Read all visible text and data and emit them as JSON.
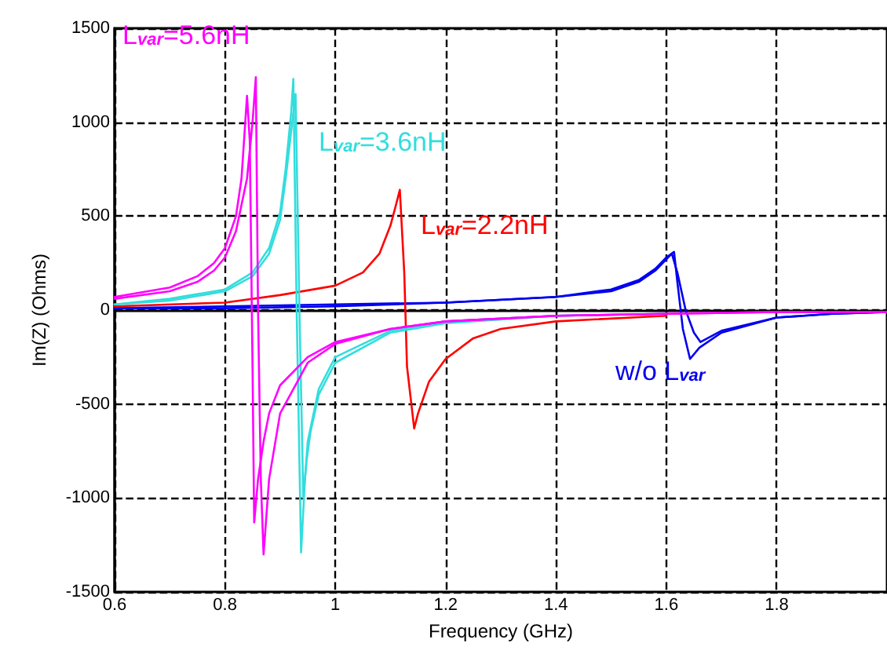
{
  "chart_data": {
    "type": "line",
    "xlabel": "Frequency (GHz)",
    "ylabel": "Im(Z) (Ohms)",
    "xlim": [
      0.6,
      2
    ],
    "xticks": [
      0.6,
      0.8,
      1,
      1.2,
      1.4,
      1.6,
      1.8
    ],
    "ylim": [
      -1500,
      1500
    ],
    "yticks": [
      -1500,
      -1000,
      -500,
      0,
      500,
      1000,
      1500
    ],
    "grid": true,
    "legend": false,
    "marker": "none",
    "line_style": "solid",
    "series": [
      {
        "name": "L$_{var}$=5.6nH",
        "color": "#ff00ff",
        "x": [
          0.6,
          0.7,
          0.75,
          0.78,
          0.8,
          0.82,
          0.83,
          0.84,
          0.845,
          0.85,
          0.853,
          0.86,
          0.87,
          0.88,
          0.9,
          0.95,
          1.0,
          1.1,
          1.2,
          1.4,
          1.6,
          1.8,
          2.0
        ],
        "values": [
          70,
          120,
          180,
          250,
          330,
          500,
          700,
          1140,
          900,
          -300,
          -1130,
          -900,
          -700,
          -550,
          -400,
          -250,
          -170,
          -100,
          -60,
          -30,
          -20,
          -10,
          -10
        ]
      },
      {
        "color": "#ff00ff",
        "x": [
          0.6,
          0.7,
          0.75,
          0.78,
          0.8,
          0.82,
          0.84,
          0.85,
          0.856,
          0.86,
          0.865,
          0.87,
          0.875,
          0.88,
          0.9,
          0.95,
          1.0,
          1.1,
          1.2,
          1.4,
          1.6,
          1.8,
          2.0
        ],
        "values": [
          60,
          100,
          150,
          210,
          280,
          420,
          700,
          1000,
          1240,
          0,
          -900,
          -1300,
          -1100,
          -900,
          -550,
          -280,
          -180,
          -100,
          -60,
          -30,
          -20,
          -10,
          -10
        ]
      },
      {
        "name": "L$_{var}$=3.6nH",
        "color": "#33dddd",
        "x": [
          0.6,
          0.7,
          0.8,
          0.85,
          0.88,
          0.9,
          0.91,
          0.92,
          0.924,
          0.93,
          0.938,
          0.945,
          0.95,
          0.97,
          1.0,
          1.1,
          1.2,
          1.4,
          1.6
        ],
        "values": [
          30,
          60,
          110,
          200,
          330,
          520,
          750,
          1050,
          1230,
          0,
          -1290,
          -900,
          -700,
          -420,
          -250,
          -110,
          -60,
          -30,
          -20
        ]
      },
      {
        "color": "#33dddd",
        "x": [
          0.6,
          0.7,
          0.8,
          0.85,
          0.88,
          0.9,
          0.91,
          0.92,
          0.928,
          0.935,
          0.942,
          0.948,
          0.955,
          0.97,
          1.0,
          1.1,
          1.2,
          1.4,
          1.6
        ],
        "values": [
          30,
          50,
          100,
          180,
          300,
          480,
          700,
          950,
          1150,
          0,
          -1000,
          -800,
          -650,
          -450,
          -280,
          -120,
          -70,
          -30,
          -20
        ]
      },
      {
        "name": "L$_{var}$=2.2nH",
        "color": "#ff0000",
        "x": [
          0.6,
          0.8,
          0.9,
          1.0,
          1.05,
          1.08,
          1.1,
          1.11,
          1.117,
          1.125,
          1.13,
          1.143,
          1.15,
          1.17,
          1.2,
          1.25,
          1.3,
          1.4,
          1.6
        ],
        "values": [
          20,
          40,
          80,
          130,
          200,
          300,
          450,
          560,
          640,
          200,
          -300,
          -630,
          -550,
          -380,
          -260,
          -150,
          -100,
          -60,
          -30
        ]
      },
      {
        "name": "w/o L$_{var}$",
        "color": "#0000ee",
        "x": [
          0.6,
          0.8,
          1.0,
          1.2,
          1.4,
          1.5,
          1.55,
          1.58,
          1.6,
          1.614,
          1.62,
          1.63,
          1.643,
          1.66,
          1.7,
          1.8,
          1.9,
          2.0
        ],
        "values": [
          10,
          20,
          30,
          40,
          70,
          110,
          160,
          220,
          280,
          310,
          150,
          -100,
          -260,
          -200,
          -120,
          -40,
          -20,
          -10
        ]
      },
      {
        "color": "#0000ee",
        "x": [
          0.6,
          0.8,
          1.0,
          1.2,
          1.4,
          1.5,
          1.55,
          1.58,
          1.6,
          1.61,
          1.62,
          1.635,
          1.65,
          1.662,
          1.7,
          1.8,
          1.9,
          2.0
        ],
        "values": [
          10,
          10,
          20,
          40,
          70,
          100,
          150,
          210,
          270,
          300,
          200,
          0,
          -120,
          -170,
          -110,
          -40,
          -20,
          -10
        ]
      }
    ]
  }
}
